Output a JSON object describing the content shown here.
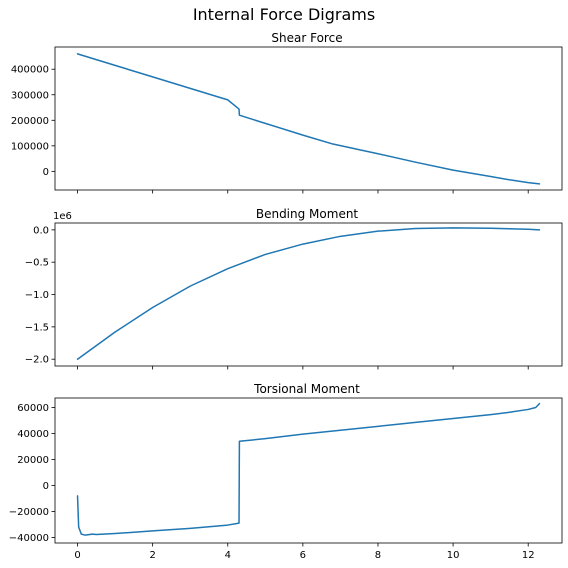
{
  "figure": {
    "title": "Internal Force Digrams",
    "line_color": "#1f77b4",
    "x_tick_labels": [
      "0",
      "2",
      "4",
      "6",
      "8",
      "10",
      "12"
    ]
  },
  "chart_data": [
    {
      "type": "line",
      "title": "Shear Force",
      "xlabel": "",
      "ylabel": "",
      "xlim": [
        -0.6,
        12.9
      ],
      "ylim": [
        -73000,
        487000
      ],
      "xticks": [
        0,
        2,
        4,
        6,
        8,
        10,
        12
      ],
      "show_x_tick_labels": false,
      "yticks": [
        0,
        100000,
        200000,
        300000,
        400000
      ],
      "ytick_labels": [
        "0",
        "100000",
        "200000",
        "300000",
        "400000"
      ],
      "offset_text": "",
      "grid": false,
      "x": [
        0,
        1,
        2,
        3,
        4,
        4.3,
        4.31,
        5,
        6,
        6.8,
        8,
        9,
        10,
        11,
        11.5,
        12,
        12.3
      ],
      "y": [
        460000,
        415000,
        370000,
        325000,
        280000,
        244000,
        220000,
        188000,
        142000,
        107000,
        69000,
        36000,
        5000,
        -20000,
        -33000,
        -44000,
        -49000
      ]
    },
    {
      "type": "line",
      "title": "Bending Moment",
      "xlabel": "",
      "ylabel": "",
      "xlim": [
        -0.6,
        12.9
      ],
      "ylim": [
        -2.105,
        0.106
      ],
      "xticks": [
        0,
        2,
        4,
        6,
        8,
        10,
        12
      ],
      "show_x_tick_labels": false,
      "yticks": [
        -2.0,
        -1.5,
        -1.0,
        -0.5,
        0.0
      ],
      "ytick_labels": [
        "−2.0",
        "−1.5",
        "−1.0",
        "−0.5",
        "0.0"
      ],
      "offset_text": "1e6",
      "grid": false,
      "x": [
        0,
        1,
        2,
        3,
        4,
        5,
        6,
        7,
        8,
        9,
        10,
        11,
        12,
        12.3
      ],
      "y": [
        -2.0,
        -1.58,
        -1.2,
        -0.87,
        -0.6,
        -0.38,
        -0.22,
        -0.1,
        -0.02,
        0.02,
        0.03,
        0.025,
        0.01,
        0.0
      ]
    },
    {
      "type": "line",
      "title": "Torsional Moment",
      "xlabel": "",
      "ylabel": "",
      "xlim": [
        -0.6,
        12.9
      ],
      "ylim": [
        -44300,
        67300
      ],
      "xticks": [
        0,
        2,
        4,
        6,
        8,
        10,
        12
      ],
      "show_x_tick_labels": true,
      "yticks": [
        -40000,
        -20000,
        0,
        20000,
        40000,
        60000
      ],
      "ytick_labels": [
        "−40000",
        "−20000",
        "0",
        "20000",
        "40000",
        "60000"
      ],
      "offset_text": "",
      "grid": false,
      "x": [
        0,
        0.03,
        0.1,
        0.2,
        0.4,
        0.5,
        1,
        2,
        3,
        4,
        4.3,
        4.31,
        5,
        6,
        7,
        8,
        9,
        10,
        11,
        11.5,
        12,
        12.2,
        12.3
      ],
      "y": [
        -8000,
        -32000,
        -37500,
        -38200,
        -37500,
        -37800,
        -37000,
        -35000,
        -33000,
        -30500,
        -29000,
        34000,
        36000,
        39500,
        42500,
        45500,
        48500,
        51500,
        54500,
        56300,
        58500,
        60000,
        63000
      ]
    }
  ]
}
